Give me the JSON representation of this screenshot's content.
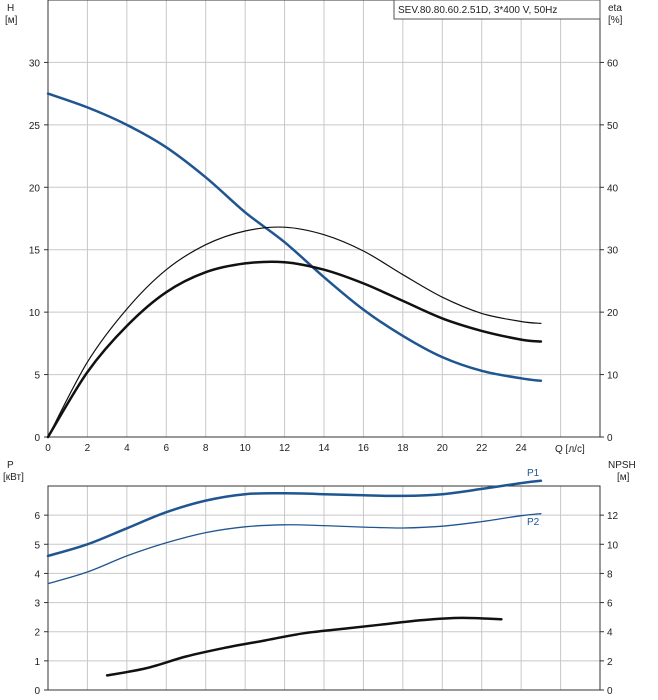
{
  "model_label": "SEV.80.80.60.2.51D, 3*400 V, 50Hz",
  "colors": {
    "blue": "#1f5591",
    "black": "#111111",
    "grid": "#c8c8c8"
  },
  "chart_data": [
    {
      "type": "line",
      "x_axis": {
        "label": "Q [л/с]",
        "ticks": [
          0,
          2,
          4,
          6,
          8,
          10,
          12,
          14,
          16,
          18,
          20,
          22,
          24
        ],
        "range": [
          0,
          28
        ]
      },
      "y_left": {
        "label_line1": "H",
        "label_line2": "[м]",
        "ticks": [
          0,
          5,
          10,
          15,
          20,
          25,
          30
        ],
        "range": [
          0,
          35
        ]
      },
      "y_right": {
        "label_line1": "eta",
        "label_line2": "[%]",
        "ticks": [
          0,
          10,
          20,
          30,
          40,
          50,
          60
        ],
        "range": [
          0,
          70
        ]
      },
      "grid": true,
      "series": [
        {
          "key": "H",
          "color": "#1f5591",
          "width": 2.5,
          "axis": "left",
          "points": [
            [
              0,
              27.5
            ],
            [
              2,
              26.4
            ],
            [
              4,
              25.0
            ],
            [
              6,
              23.2
            ],
            [
              8,
              20.8
            ],
            [
              10,
              18.0
            ],
            [
              12,
              15.6
            ],
            [
              14,
              12.8
            ],
            [
              16,
              10.2
            ],
            [
              18,
              8.1
            ],
            [
              20,
              6.4
            ],
            [
              22,
              5.3
            ],
            [
              24,
              4.7
            ],
            [
              25,
              4.5
            ]
          ]
        },
        {
          "key": "eta_thin",
          "color": "#111111",
          "width": 1.2,
          "axis": "right",
          "points": [
            [
              0,
              0
            ],
            [
              2,
              12.0
            ],
            [
              4,
              20.5
            ],
            [
              6,
              26.8
            ],
            [
              8,
              30.8
            ],
            [
              10,
              33.0
            ],
            [
              12,
              33.6
            ],
            [
              14,
              32.4
            ],
            [
              16,
              29.8
            ],
            [
              18,
              26.0
            ],
            [
              20,
              22.4
            ],
            [
              22,
              19.8
            ],
            [
              24,
              18.5
            ],
            [
              25,
              18.2
            ]
          ]
        },
        {
          "key": "eta_thick",
          "color": "#111111",
          "width": 2.5,
          "axis": "right",
          "points": [
            [
              0,
              0
            ],
            [
              2,
              10.4
            ],
            [
              4,
              17.8
            ],
            [
              6,
              23.2
            ],
            [
              8,
              26.4
            ],
            [
              10,
              27.8
            ],
            [
              12,
              28.0
            ],
            [
              14,
              26.8
            ],
            [
              16,
              24.6
            ],
            [
              18,
              21.8
            ],
            [
              20,
              19.0
            ],
            [
              22,
              17.0
            ],
            [
              24,
              15.6
            ],
            [
              25,
              15.3
            ]
          ]
        }
      ]
    },
    {
      "type": "line",
      "x_axis": {
        "range": [
          0,
          28
        ]
      },
      "y_left": {
        "label_line1": "P",
        "label_line2": "[кВт]",
        "ticks": [
          0,
          1,
          2,
          3,
          4,
          5,
          6
        ],
        "range": [
          0,
          7
        ]
      },
      "y_right": {
        "label_line1": "NPSH",
        "label_line2": "[м]",
        "ticks": [
          0,
          2,
          4,
          6,
          8,
          10,
          12
        ],
        "range": [
          0,
          14
        ]
      },
      "grid": true,
      "series": [
        {
          "key": "P1",
          "name": "P1",
          "color": "#1f5591",
          "width": 2.5,
          "axis": "left",
          "points": [
            [
              0,
              4.6
            ],
            [
              2,
              5.0
            ],
            [
              4,
              5.55
            ],
            [
              6,
              6.1
            ],
            [
              8,
              6.5
            ],
            [
              10,
              6.72
            ],
            [
              12,
              6.75
            ],
            [
              14,
              6.72
            ],
            [
              16,
              6.68
            ],
            [
              18,
              6.66
            ],
            [
              20,
              6.72
            ],
            [
              22,
              6.9
            ],
            [
              24,
              7.1
            ],
            [
              25,
              7.18
            ]
          ]
        },
        {
          "key": "P2",
          "name": "P2",
          "color": "#1f5591",
          "width": 1.3,
          "axis": "left",
          "points": [
            [
              0,
              3.65
            ],
            [
              2,
              4.05
            ],
            [
              4,
              4.6
            ],
            [
              6,
              5.05
            ],
            [
              8,
              5.4
            ],
            [
              10,
              5.6
            ],
            [
              12,
              5.67
            ],
            [
              14,
              5.64
            ],
            [
              16,
              5.59
            ],
            [
              18,
              5.56
            ],
            [
              20,
              5.62
            ],
            [
              22,
              5.78
            ],
            [
              24,
              5.98
            ],
            [
              25,
              6.05
            ]
          ]
        },
        {
          "key": "NPSH",
          "color": "#111111",
          "width": 2.5,
          "axis": "right",
          "points": [
            [
              3,
              1.0
            ],
            [
              5,
              1.5
            ],
            [
              7,
              2.3
            ],
            [
              9,
              2.9
            ],
            [
              11,
              3.4
            ],
            [
              13,
              3.9
            ],
            [
              15,
              4.2
            ],
            [
              17,
              4.5
            ],
            [
              19,
              4.8
            ],
            [
              21,
              4.95
            ],
            [
              23,
              4.85
            ]
          ]
        }
      ]
    }
  ]
}
